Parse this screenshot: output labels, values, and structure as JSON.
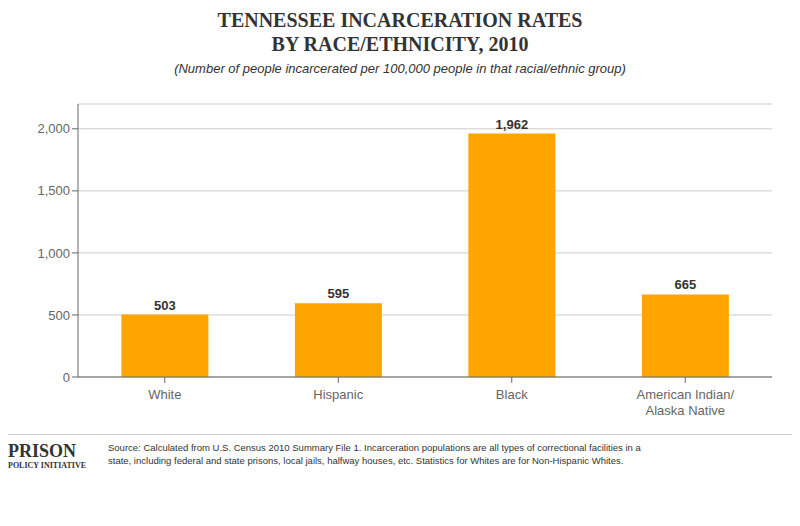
{
  "chart_data": {
    "type": "bar",
    "title": "TENNESSEE INCARCERATION RATES\nBY RACE/ETHNICITY, 2010",
    "subtitle": "(Number of people incarcerated per 100,000 people in that racial/ethnic group)",
    "categories": [
      "White",
      "Hispanic",
      "Black",
      "American Indian/\nAlaska Native"
    ],
    "values": [
      503,
      595,
      1962,
      665
    ],
    "value_labels": [
      "503",
      "595",
      "1,962",
      "665"
    ],
    "data_labels": true,
    "color": "#FFA500",
    "ylim": [
      0,
      2200
    ],
    "yticks": [
      0,
      500,
      {
        "value": 1000,
        "label": "1,000"
      },
      {
        "value": 1500,
        "label": "1,500"
      },
      {
        "value": 2000,
        "label": "2,000"
      }
    ],
    "grid": true,
    "annotations": [
      "PRISON",
      "POLICY INITIATIVE",
      "Source: Calculated from U.S. Census 2010 Summary File 1. Incarceration populations are all types of correctional facilities in a\nstate, including federal and state prisons, local jails, halfway houses, etc. Statistics for Whites are for Non-Hispanic Whites."
    ]
  }
}
